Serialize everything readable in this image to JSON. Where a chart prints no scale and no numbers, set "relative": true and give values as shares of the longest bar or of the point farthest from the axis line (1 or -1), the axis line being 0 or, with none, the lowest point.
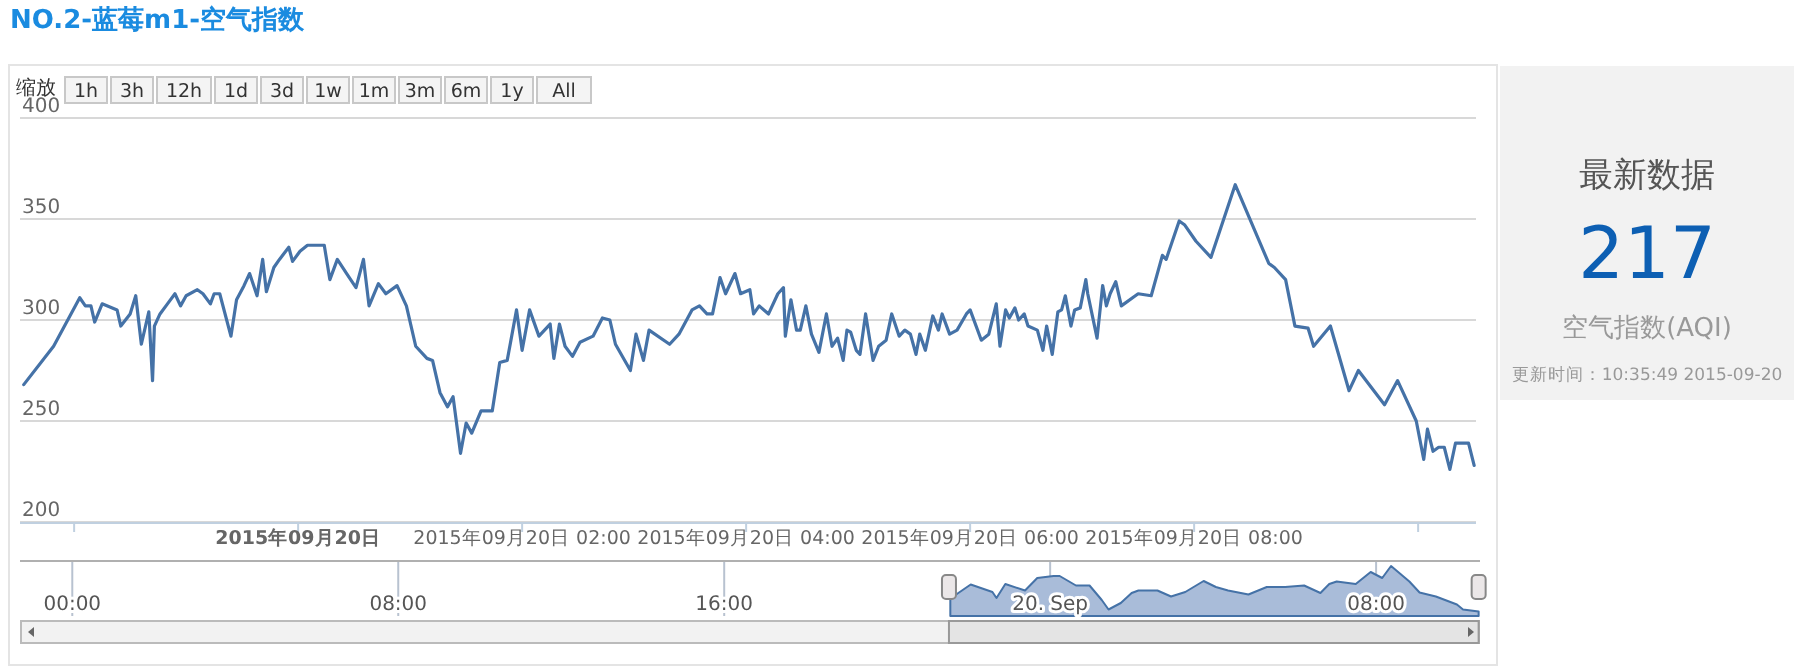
{
  "chart_data": [
    {
      "type": "line",
      "title": "NO.2-蓝莓m1-空气指数",
      "color": "#4572a7",
      "grid": "y",
      "annotations": [
        "缩放",
        "1h",
        "3h",
        "12h",
        "1d",
        "3d",
        "1w",
        "1m",
        "3m",
        "6m",
        "1y",
        "All"
      ],
      "xlim": [
        "2015-09-19T21:31",
        "2015-09-20T10:31"
      ],
      "xticks": [
        {
          "value": "2015-09-19T22:00",
          "label": null
        },
        {
          "value": "2015-09-20T00:00",
          "label": "2015年09月20日"
        },
        {
          "value": "2015-09-20T02:00",
          "label": "2015年09月20日 02:00"
        },
        {
          "value": "2015-09-20T04:00",
          "label": "2015年09月20日 04:00"
        },
        {
          "value": "2015-09-20T06:00",
          "label": "2015年09月20日 06:00"
        },
        {
          "value": "2015-09-20T08:00",
          "label": "2015年09月20日 08:00"
        },
        {
          "value": "2015-09-20T10:00",
          "label": null
        }
      ],
      "ylim": [
        200,
        400
      ],
      "yticks": [
        200,
        250,
        300,
        350,
        400
      ],
      "x": [
        "2015-09-19T21:33",
        "2015-09-19T21:49",
        "2015-09-19T22:03",
        "2015-09-19T22:06",
        "2015-09-19T22:09",
        "2015-09-19T22:11",
        "2015-09-19T22:15",
        "2015-09-19T22:23",
        "2015-09-19T22:25",
        "2015-09-19T22:30",
        "2015-09-19T22:33",
        "2015-09-19T22:36",
        "2015-09-19T22:40",
        "2015-09-19T22:42",
        "2015-09-19T22:43",
        "2015-09-19T22:46",
        "2015-09-19T22:50",
        "2015-09-19T22:54",
        "2015-09-19T22:57",
        "2015-09-19T23:00",
        "2015-09-19T23:06",
        "2015-09-19T23:09",
        "2015-09-19T23:13",
        "2015-09-19T23:15",
        "2015-09-19T23:18",
        "2015-09-19T23:24",
        "2015-09-19T23:27",
        "2015-09-19T23:31",
        "2015-09-19T23:34",
        "2015-09-19T23:38",
        "2015-09-19T23:41",
        "2015-09-19T23:43",
        "2015-09-19T23:47",
        "2015-09-19T23:50",
        "2015-09-19T23:55",
        "2015-09-19T23:57",
        "2015-09-20T00:01",
        "2015-09-20T00:05",
        "2015-09-20T00:14",
        "2015-09-20T00:17",
        "2015-09-20T00:21",
        "2015-09-20T00:26",
        "2015-09-20T00:31",
        "2015-09-20T00:35",
        "2015-09-20T00:38",
        "2015-09-20T00:43",
        "2015-09-20T00:47",
        "2015-09-20T00:53",
        "2015-09-20T00:58",
        "2015-09-20T01:03",
        "2015-09-20T01:09",
        "2015-09-20T01:12",
        "2015-09-20T01:16",
        "2015-09-20T01:20",
        "2015-09-20T01:23",
        "2015-09-20T01:27",
        "2015-09-20T01:30",
        "2015-09-20T01:33",
        "2015-09-20T01:38",
        "2015-09-20T01:44",
        "2015-09-20T01:48",
        "2015-09-20T01:52",
        "2015-09-20T01:57",
        "2015-09-20T02:00",
        "2015-09-20T02:04",
        "2015-09-20T02:09",
        "2015-09-20T02:15",
        "2015-09-20T02:17",
        "2015-09-20T02:20",
        "2015-09-20T02:23",
        "2015-09-20T02:27",
        "2015-09-20T02:31",
        "2015-09-20T02:38",
        "2015-09-20T02:43",
        "2015-09-20T02:47",
        "2015-09-20T02:50",
        "2015-09-20T02:58",
        "2015-09-20T03:01",
        "2015-09-20T03:05",
        "2015-09-20T03:08",
        "2015-09-20T03:19",
        "2015-09-20T03:24",
        "2015-09-20T03:31",
        "2015-09-20T03:35",
        "2015-09-20T03:39",
        "2015-09-20T03:42",
        "2015-09-20T03:46",
        "2015-09-20T03:49",
        "2015-09-20T03:54",
        "2015-09-20T03:57",
        "2015-09-20T04:02",
        "2015-09-20T04:04",
        "2015-09-20T04:07",
        "2015-09-20T04:12",
        "2015-09-20T04:17",
        "2015-09-20T04:20",
        "2015-09-20T04:21",
        "2015-09-20T04:24",
        "2015-09-20T04:27",
        "2015-09-20T04:29",
        "2015-09-20T04:32",
        "2015-09-20T04:35",
        "2015-09-20T04:39",
        "2015-09-20T04:43",
        "2015-09-20T04:46",
        "2015-09-20T04:49",
        "2015-09-20T04:52",
        "2015-09-20T04:54",
        "2015-09-20T04:56",
        "2015-09-20T04:59",
        "2015-09-20T05:01",
        "2015-09-20T05:04",
        "2015-09-20T05:08",
        "2015-09-20T05:11",
        "2015-09-20T05:15",
        "2015-09-20T05:18",
        "2015-09-20T05:22",
        "2015-09-20T05:25",
        "2015-09-20T05:28",
        "2015-09-20T05:31",
        "2015-09-20T05:33",
        "2015-09-20T05:36",
        "2015-09-20T05:40",
        "2015-09-20T05:43",
        "2015-09-20T05:45",
        "2015-09-20T05:49",
        "2015-09-20T05:53",
        "2015-09-20T05:58",
        "2015-09-20T06:00",
        "2015-09-20T06:06",
        "2015-09-20T06:10",
        "2015-09-20T06:14",
        "2015-09-20T06:16",
        "2015-09-20T06:19",
        "2015-09-20T06:21",
        "2015-09-20T06:24",
        "2015-09-20T06:26",
        "2015-09-20T06:29",
        "2015-09-20T06:31",
        "2015-09-20T06:36",
        "2015-09-20T06:39",
        "2015-09-20T06:41",
        "2015-09-20T06:44",
        "2015-09-20T06:47",
        "2015-09-20T06:49",
        "2015-09-20T06:51",
        "2015-09-20T06:54",
        "2015-09-20T06:56",
        "2015-09-20T06:59",
        "2015-09-20T07:02",
        "2015-09-20T07:03",
        "2015-09-20T07:08",
        "2015-09-20T07:11",
        "2015-09-20T07:13",
        "2015-09-20T07:15",
        "2015-09-20T07:18",
        "2015-09-20T07:21",
        "2015-09-20T07:30",
        "2015-09-20T07:37",
        "2015-09-20T07:43",
        "2015-09-20T07:45",
        "2015-09-20T07:52",
        "2015-09-20T07:55",
        "2015-09-20T08:01",
        "2015-09-20T08:09",
        "2015-09-20T08:22",
        "2015-09-20T08:40",
        "2015-09-20T08:43",
        "2015-09-20T08:49",
        "2015-09-20T08:54",
        "2015-09-20T09:01",
        "2015-09-20T09:04",
        "2015-09-20T09:13",
        "2015-09-20T09:23",
        "2015-09-20T09:28",
        "2015-09-20T09:42",
        "2015-09-20T09:49",
        "2015-09-20T09:59",
        "2015-09-20T10:03",
        "2015-09-20T10:05",
        "2015-09-20T10:08",
        "2015-09-20T10:11",
        "2015-09-20T10:14",
        "2015-09-20T10:17",
        "2015-09-20T10:20",
        "2015-09-20T10:27",
        "2015-09-20T10:30"
      ],
      "values": [
        268,
        287,
        311,
        307,
        307,
        299,
        308,
        305,
        297,
        303,
        312,
        288,
        304,
        270,
        297,
        303,
        308,
        313,
        307,
        312,
        315,
        313,
        308,
        313,
        313,
        292,
        310,
        317,
        323,
        312,
        330,
        314,
        326,
        330,
        336,
        329,
        334,
        337,
        337,
        320,
        330,
        323,
        316,
        330,
        307,
        318,
        313,
        317,
        307,
        287,
        281,
        280,
        264,
        257,
        262,
        234,
        249,
        244,
        255,
        255,
        279,
        280,
        305,
        285,
        305,
        292,
        298,
        281,
        298,
        287,
        282,
        289,
        292,
        301,
        300,
        288,
        275,
        293,
        280,
        295,
        288,
        293,
        305,
        307,
        303,
        303,
        321,
        313,
        323,
        313,
        315,
        303,
        307,
        303,
        313,
        316,
        292,
        310,
        295,
        295,
        307,
        293,
        284,
        303,
        287,
        291,
        280,
        295,
        294,
        285,
        283,
        303,
        280,
        287,
        290,
        303,
        292,
        295,
        293,
        283,
        293,
        285,
        302,
        295,
        303,
        293,
        295,
        303,
        305,
        290,
        293,
        308,
        287,
        305,
        301,
        306,
        300,
        303,
        297,
        295,
        285,
        297,
        283,
        304,
        305,
        312,
        297,
        305,
        306,
        320,
        313,
        291,
        317,
        307,
        313,
        319,
        307,
        313,
        312,
        332,
        330,
        349,
        347,
        339,
        331,
        367,
        328,
        326,
        320,
        297,
        296,
        287,
        297,
        265,
        275,
        258,
        270,
        250,
        231,
        246,
        235,
        237,
        237,
        226,
        239,
        239,
        228
      ]
    },
    {
      "type": "area",
      "relative": true,
      "color": "#4572a7",
      "grid": "x",
      "xlim": [
        "2015-09-18T22:43",
        "2015-09-20T10:33"
      ],
      "xticks": [
        {
          "value": "2015-09-19T00:00",
          "label": "00:00"
        },
        {
          "value": "2015-09-19T08:00",
          "label": "08:00"
        },
        {
          "value": "2015-09-19T16:00",
          "label": "16:00"
        },
        {
          "value": "2015-09-20T00:00",
          "label": "20. Sep"
        },
        {
          "value": "2015-09-20T08:00",
          "label": "08:00"
        }
      ],
      "x": [
        "2015-09-19T21:33",
        "2015-09-19T22:03",
        "2015-09-19T22:35",
        "2015-09-19T22:41",
        "2015-09-19T22:54",
        "2015-09-19T23:23",
        "2015-09-19T23:41",
        "2015-09-20T00:05",
        "2015-09-20T00:14",
        "2015-09-20T00:38",
        "2015-09-20T00:58",
        "2015-09-20T01:16",
        "2015-09-20T01:26",
        "2015-09-20T01:44",
        "2015-09-20T02:00",
        "2015-09-20T02:10",
        "2015-09-20T02:38",
        "2015-09-20T02:58",
        "2015-09-20T03:19",
        "2015-09-20T03:46",
        "2015-09-20T04:04",
        "2015-09-20T04:22",
        "2015-09-20T04:52",
        "2015-09-20T05:19",
        "2015-09-20T05:46",
        "2015-09-20T06:14",
        "2015-09-20T06:38",
        "2015-09-20T06:51",
        "2015-09-20T07:02",
        "2015-09-20T07:30",
        "2015-09-20T07:52",
        "2015-09-20T08:09",
        "2015-09-20T08:22",
        "2015-09-20T08:49",
        "2015-09-20T09:04",
        "2015-09-20T09:28",
        "2015-09-20T09:59",
        "2015-09-20T10:08",
        "2015-09-20T10:31"
      ],
      "values": [
        0.35,
        0.63,
        0.48,
        0.36,
        0.64,
        0.51,
        0.76,
        0.8,
        0.8,
        0.61,
        0.61,
        0.32,
        0.13,
        0.26,
        0.46,
        0.51,
        0.51,
        0.39,
        0.48,
        0.7,
        0.58,
        0.51,
        0.43,
        0.58,
        0.58,
        0.61,
        0.46,
        0.64,
        0.69,
        0.64,
        0.88,
        0.76,
        1.0,
        0.69,
        0.47,
        0.39,
        0.23,
        0.13,
        0.09
      ]
    },
    {
      "type": "other",
      "title": "最新数据",
      "annotations": [
        "217",
        "空气指数(AQI)",
        "更新时间：10:35:49 2015-09-20"
      ]
    }
  ]
}
